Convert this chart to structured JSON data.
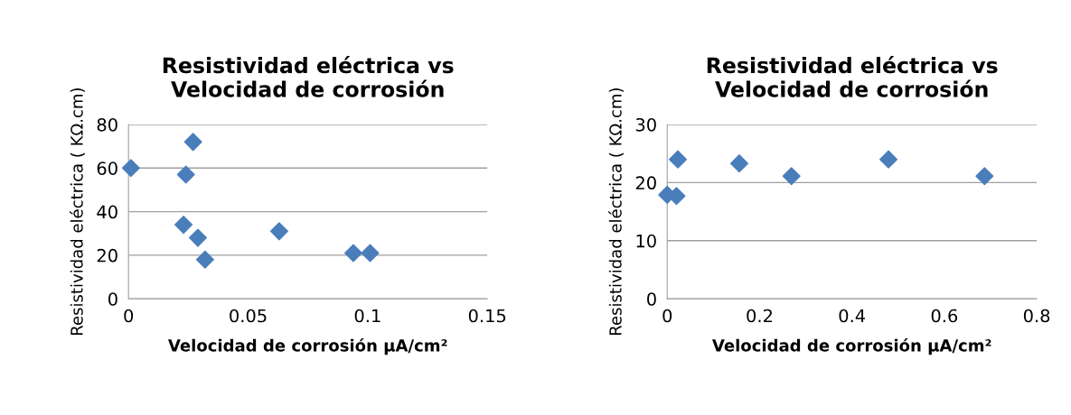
{
  "chart_data": [
    {
      "type": "scatter",
      "title": "Resistividad eléctrica vs\nVelocidad de corrosión",
      "xlabel": "Velocidad de corrosión µA/cm²",
      "ylabel": "Resistividad eléctrica ( KΩ.cm)",
      "xlim": [
        0,
        0.15
      ],
      "xticks": [
        0,
        0.05,
        0.1,
        0.15
      ],
      "ylim": [
        0,
        80
      ],
      "yticks": [
        0,
        20,
        40,
        60,
        80
      ],
      "grid": "y",
      "marker": "diamond",
      "series": [
        {
          "color": "#4a7ebb",
          "x": [
            0.001,
            0.027,
            0.024,
            0.023,
            0.029,
            0.032,
            0.063,
            0.094,
            0.101
          ],
          "values": [
            60,
            72,
            57,
            34,
            28,
            18,
            31,
            21,
            21
          ]
        }
      ]
    },
    {
      "type": "scatter",
      "title": "Resistividad eléctrica vs\nVelocidad de corrosión",
      "xlabel": "Velocidad de corrosión µA/cm²",
      "ylabel": "Resistividad eléctrica ( KΩ.cm)",
      "xlim": [
        0,
        0.8
      ],
      "xticks": [
        0,
        0.2,
        0.4,
        0.6,
        0.8
      ],
      "ylim": [
        0,
        30
      ],
      "yticks": [
        0,
        10,
        20,
        30
      ],
      "grid": "y",
      "marker": "diamond",
      "series": [
        {
          "color": "#4a7ebb",
          "x": [
            0,
            0.02,
            0.023,
            0.156,
            0.269,
            0.479,
            0.687
          ],
          "values": [
            17.9,
            17.7,
            24,
            23.3,
            21.1,
            24,
            21.1
          ]
        }
      ]
    }
  ]
}
